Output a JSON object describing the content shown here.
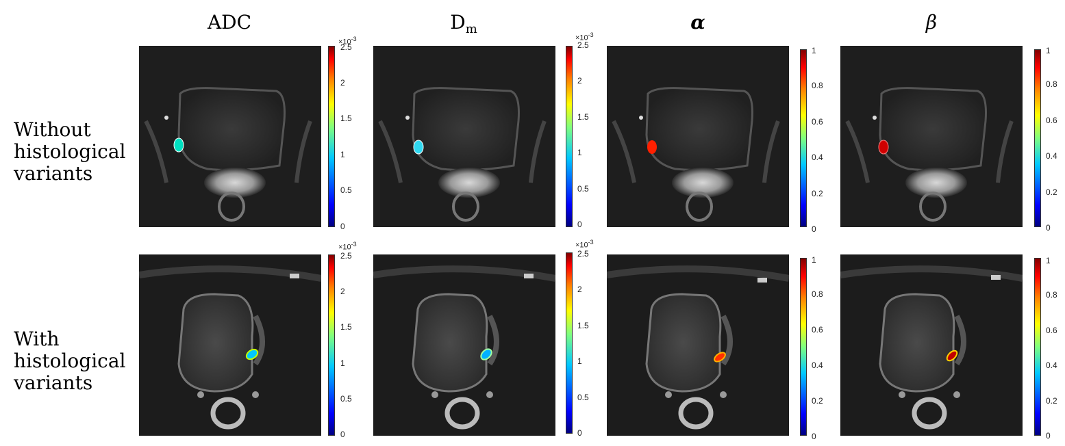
{
  "columns": [
    {
      "id": "adc",
      "title": "ADC",
      "sub": ""
    },
    {
      "id": "dm",
      "title": "D",
      "sub": "m"
    },
    {
      "id": "alpha",
      "title": "α",
      "sub": ""
    },
    {
      "id": "beta",
      "title": "β",
      "sub": ""
    }
  ],
  "rows": [
    {
      "label_lines": [
        "Without",
        "histological",
        "variants"
      ]
    },
    {
      "label_lines": [
        "With",
        "histological",
        "variants"
      ]
    }
  ],
  "colorbar_adc": {
    "ticks": [
      "0",
      "0.5",
      "1",
      "1.5",
      "2",
      "2.5"
    ],
    "multiplier_base": "×10",
    "multiplier_exp": "-3"
  },
  "colorbar_param": {
    "ticks": [
      "0",
      "0.2",
      "0.4",
      "0.6",
      "0.8",
      "1"
    ]
  },
  "colors": {
    "lesion_adc": "#00e0c0",
    "lesion_dm": "#30d8f0",
    "lesion_alpha": "#ff2000",
    "lesion_beta": "#d00000"
  }
}
